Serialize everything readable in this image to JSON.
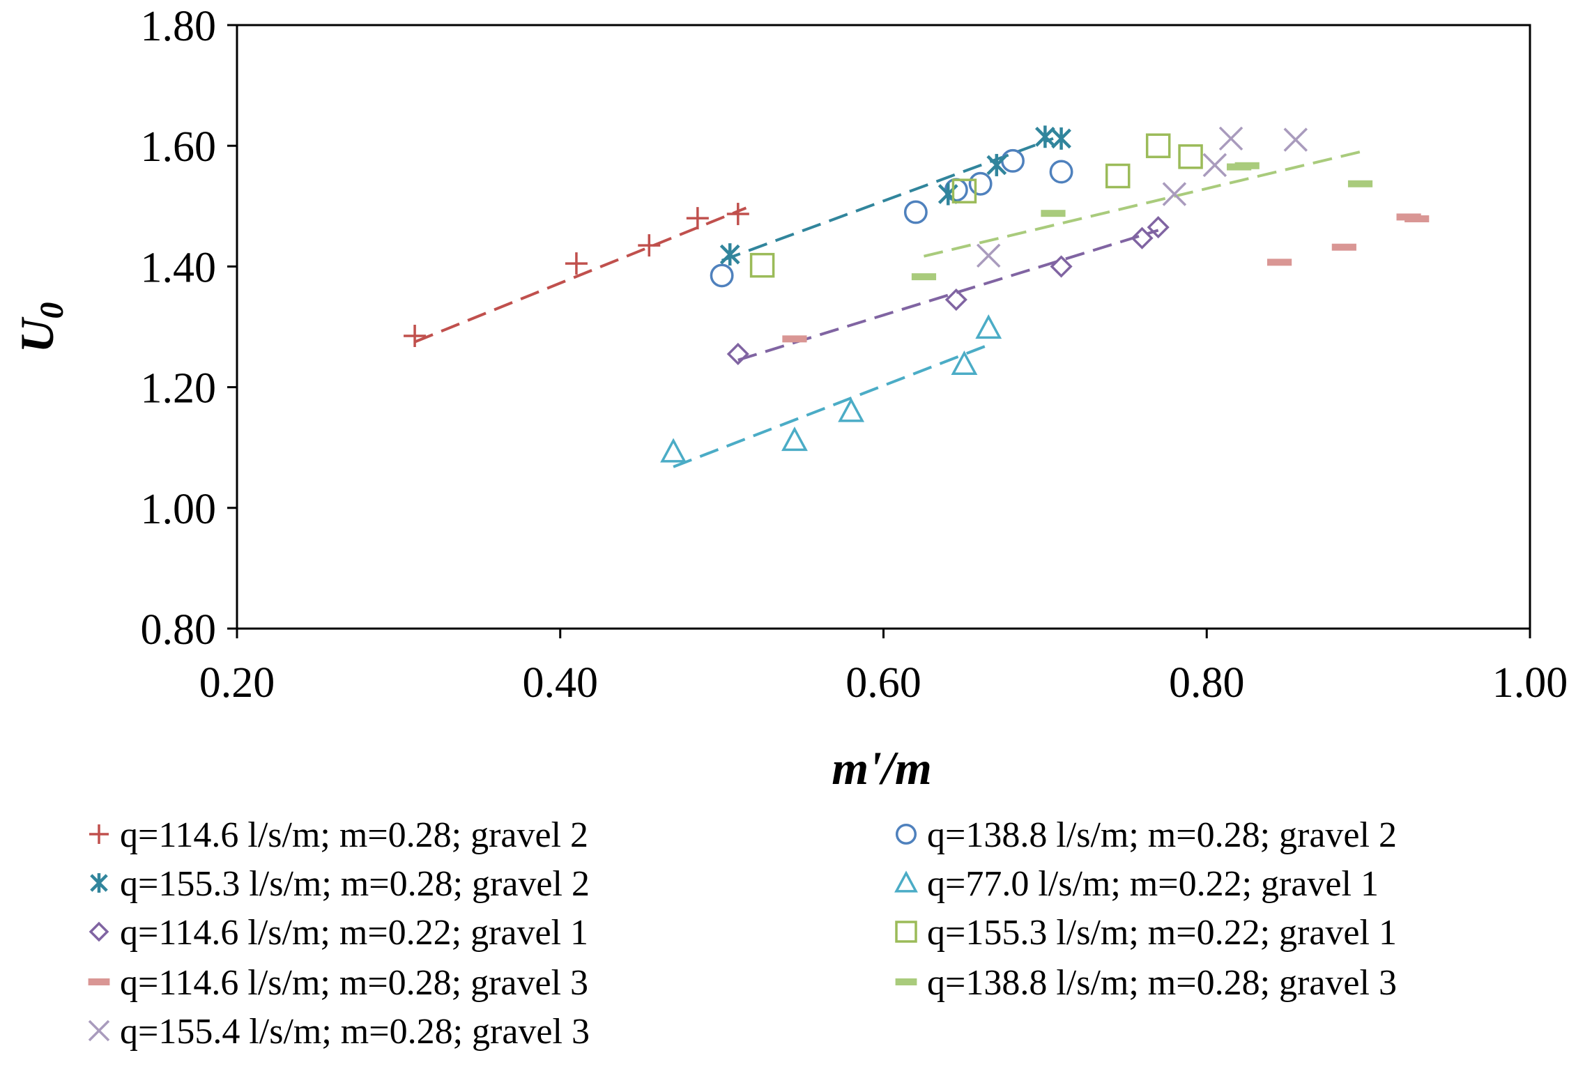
{
  "chart_data": {
    "type": "scatter",
    "title": "",
    "xlabel": "m'/m",
    "ylabel": "U",
    "ylabel_sub": "0",
    "xlim": [
      0.2,
      1.0
    ],
    "ylim": [
      0.8,
      1.8
    ],
    "x_ticks": [
      0.2,
      0.4,
      0.6,
      0.8,
      1.0
    ],
    "y_ticks": [
      0.8,
      1.0,
      1.2,
      1.4,
      1.6,
      1.8
    ],
    "x_tick_labels": [
      "0.20",
      "0.40",
      "0.60",
      "0.80",
      "1.00"
    ],
    "y_tick_labels": [
      "0.80",
      "1.00",
      "1.20",
      "1.40",
      "1.60",
      "1.80"
    ],
    "grid": false,
    "legend_position": "bottom",
    "series": [
      {
        "name": "q=114.6 l/s/m; m=0.28; gravel 2",
        "marker": "plus",
        "color": "#c0504d",
        "x": [
          0.31,
          0.41,
          0.455,
          0.485,
          0.51
        ],
        "y": [
          1.285,
          1.405,
          1.435,
          1.48,
          1.487
        ],
        "trend": {
          "x": [
            0.31,
            0.515
          ],
          "y": [
            1.275,
            1.497
          ]
        }
      },
      {
        "name": "q=138.8 l/s/m; m=0.28; gravel 2",
        "marker": "circle",
        "color": "#4f81bd",
        "x": [
          0.5,
          0.62,
          0.645,
          0.66,
          0.68,
          0.71
        ],
        "y": [
          1.385,
          1.49,
          1.527,
          1.537,
          1.575,
          1.557
        ],
        "trend": null
      },
      {
        "name": "q=155.3 l/s/m; m=0.28; gravel 2",
        "marker": "asterisk",
        "color": "#31859c",
        "x": [
          0.505,
          0.64,
          0.67,
          0.7,
          0.71
        ],
        "y": [
          1.42,
          1.52,
          1.568,
          1.615,
          1.612
        ],
        "trend": {
          "x": [
            0.5,
            0.705
          ],
          "y": [
            1.41,
            1.612
          ]
        }
      },
      {
        "name": "q=77.0 l/s/m; m=0.22; gravel 1",
        "marker": "triangle",
        "color": "#4bacc6",
        "x": [
          0.47,
          0.545,
          0.58,
          0.65,
          0.665
        ],
        "y": [
          1.093,
          1.112,
          1.16,
          1.238,
          1.298
        ],
        "trend": {
          "x": [
            0.47,
            0.665
          ],
          "y": [
            1.068,
            1.27
          ]
        }
      },
      {
        "name": "q=114.6 l/s/m; m=0.22; gravel 1",
        "marker": "diamond",
        "color": "#8064a2",
        "x": [
          0.51,
          0.645,
          0.71,
          0.76,
          0.77
        ],
        "y": [
          1.255,
          1.345,
          1.4,
          1.447,
          1.465
        ],
        "trend": {
          "x": [
            0.51,
            0.77
          ],
          "y": [
            1.245,
            1.46
          ]
        }
      },
      {
        "name": "q=155.3 l/s/m; m=0.22; gravel 1",
        "marker": "square",
        "color": "#9bbb59",
        "x": [
          0.525,
          0.65,
          0.745,
          0.77,
          0.79
        ],
        "y": [
          1.402,
          1.525,
          1.55,
          1.6,
          1.582
        ],
        "trend": null
      },
      {
        "name": "q=114.6 l/s/m; m=0.28; gravel 3",
        "marker": "dash",
        "color": "#d99694",
        "x": [
          0.545,
          0.845,
          0.885,
          0.925,
          0.93
        ],
        "y": [
          1.28,
          1.407,
          1.432,
          1.482,
          1.479
        ],
        "trend": null
      },
      {
        "name": "q=138.8 l/s/m; m=0.28; gravel 3",
        "marker": "dash",
        "color": "#a9cb7c",
        "x": [
          0.625,
          0.705,
          0.82,
          0.825,
          0.895
        ],
        "y": [
          1.383,
          1.488,
          1.565,
          1.567,
          1.537
        ],
        "trend": {
          "x": [
            0.625,
            0.895
          ],
          "y": [
            1.417,
            1.59
          ]
        }
      },
      {
        "name": "q=155.4 l/s/m; m=0.28; gravel 3",
        "marker": "cross",
        "color": "#a99bbd",
        "x": [
          0.665,
          0.78,
          0.805,
          0.815,
          0.855
        ],
        "y": [
          1.418,
          1.52,
          1.568,
          1.612,
          1.61
        ],
        "trend": null
      }
    ]
  }
}
